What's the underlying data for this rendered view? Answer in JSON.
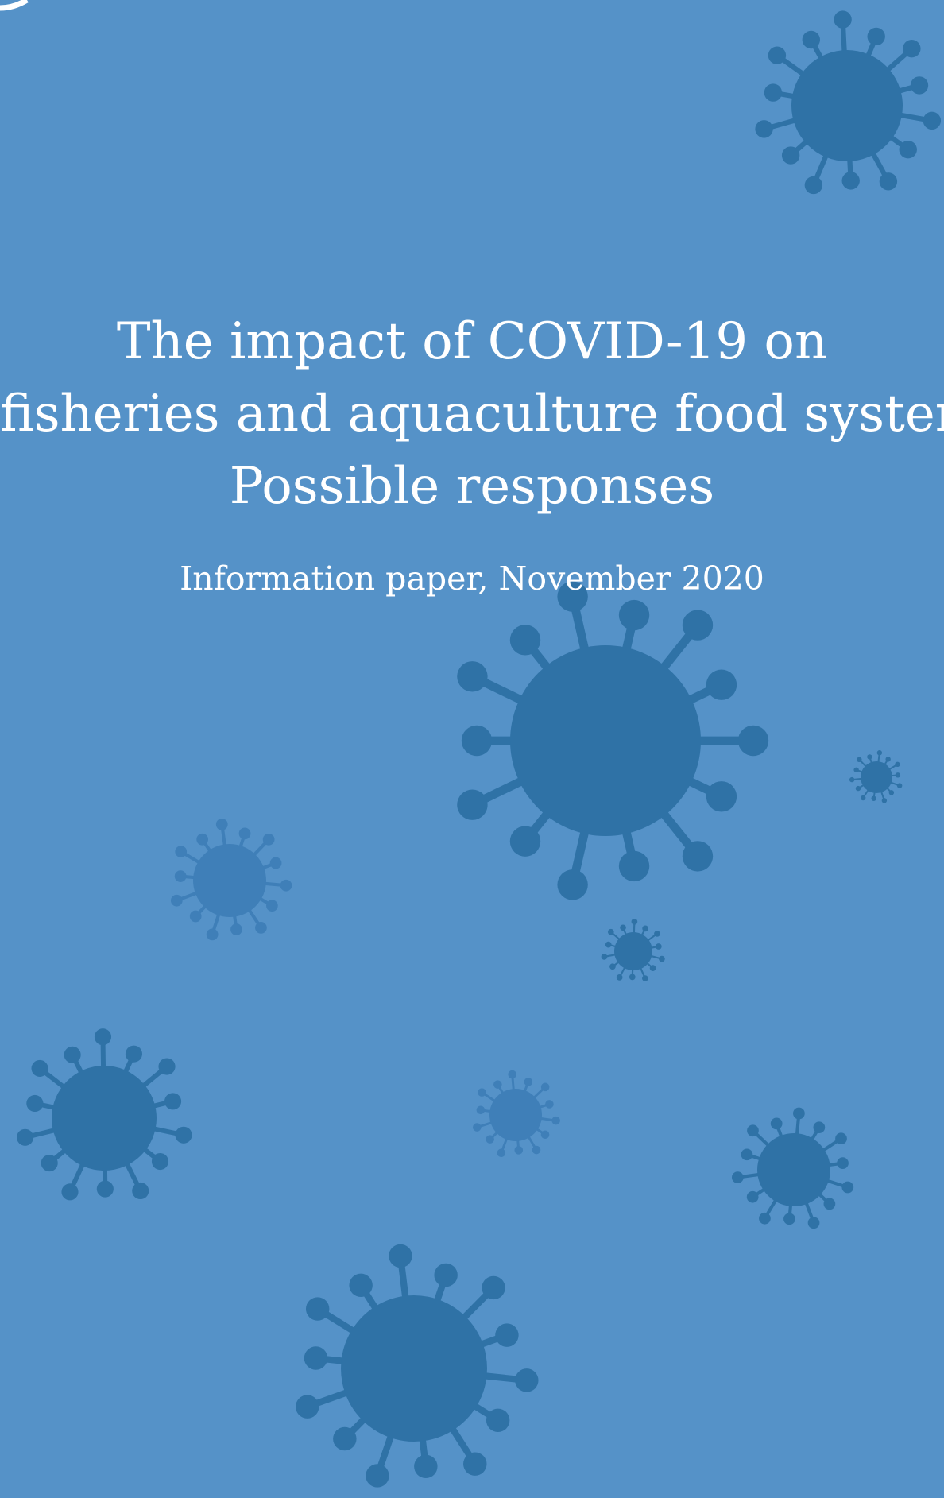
{
  "cover": {
    "title_lines": [
      "The impact of COVID-19 on",
      "fisheries and aquaculture food systems,",
      "Possible responses"
    ],
    "subtitle": "Information paper, November 2020"
  },
  "colors": {
    "background": "#5592c8",
    "virus": "#2f72a6",
    "virus_light": "#3f7fb8",
    "text": "#ffffff"
  },
  "icons": [
    "coronavirus-icon",
    "logo-fragment-icon"
  ]
}
